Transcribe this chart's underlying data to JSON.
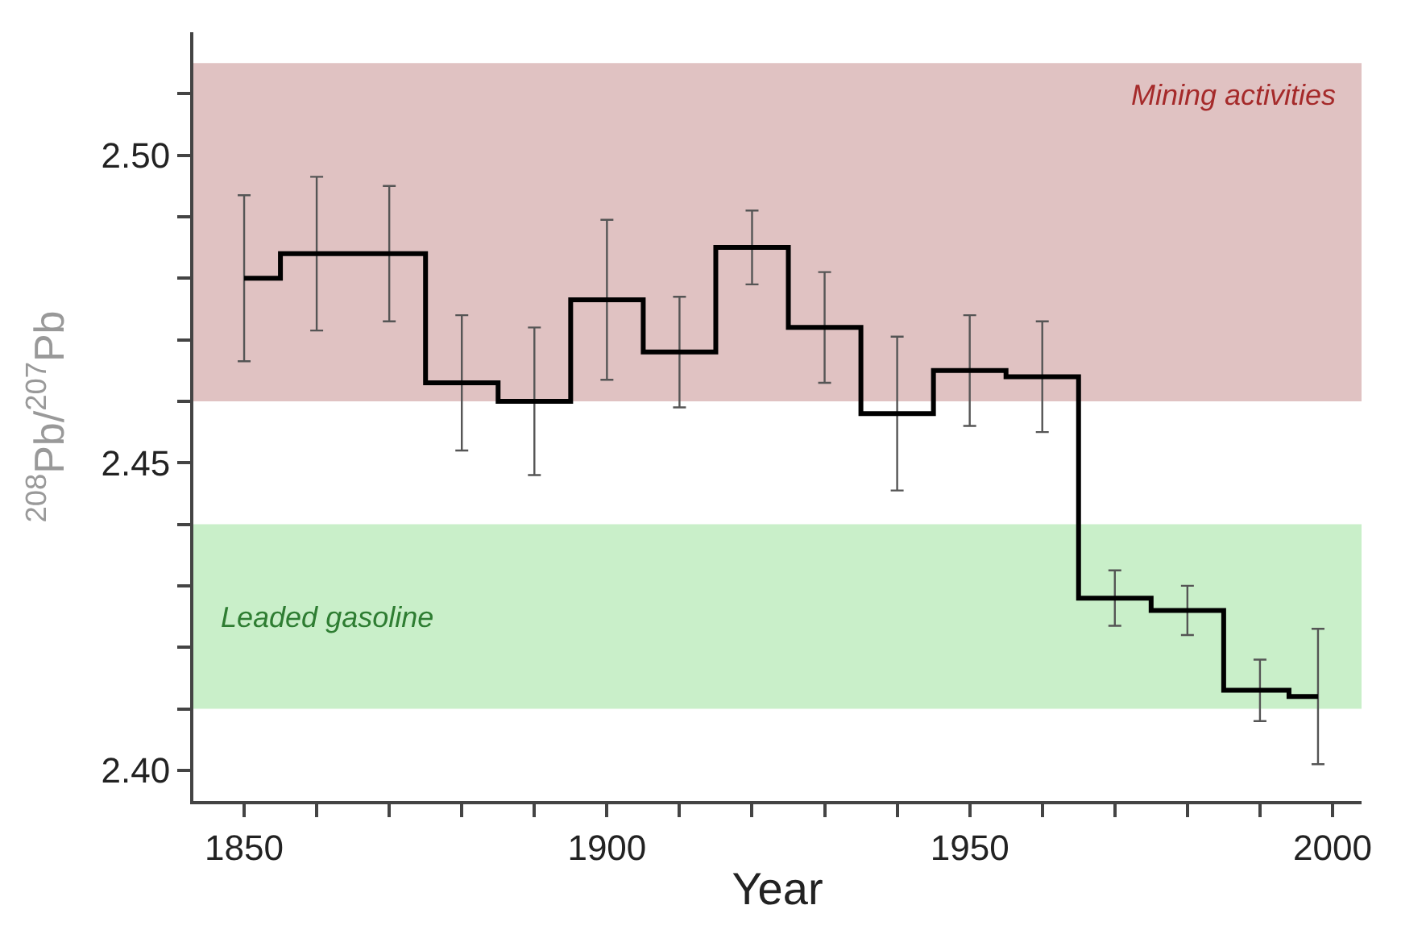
{
  "chart_data": {
    "type": "step",
    "xlabel": "Year",
    "ylabel": "$^{208}$Pb/$^{207}$Pb",
    "x": [
      1850,
      1860,
      1870,
      1880,
      1890,
      1900,
      1910,
      1920,
      1930,
      1940,
      1950,
      1960,
      1970,
      1980,
      1990,
      1998
    ],
    "series": [
      {
        "color": "#000000",
        "values": [
          2.48,
          2.484,
          2.484,
          2.463,
          2.46,
          2.4765,
          2.468,
          2.485,
          2.472,
          2.458,
          2.465,
          2.464,
          2.428,
          2.426,
          2.413,
          2.412
        ],
        "errors": [
          0.0135,
          0.0125,
          0.011,
          0.011,
          0.012,
          0.013,
          0.009,
          0.006,
          0.009,
          0.0125,
          0.009,
          0.009,
          0.0045,
          0.004,
          0.005,
          0.011
        ]
      }
    ],
    "xlim": [
      1843,
      2004
    ],
    "ylim": [
      2.395,
      2.52
    ],
    "xticks": [
      1850,
      {
        "value": 1860,
        "label": null
      },
      {
        "value": 1870,
        "label": null
      },
      {
        "value": 1880,
        "label": null
      },
      {
        "value": 1890,
        "label": null
      },
      1900,
      {
        "value": 1910,
        "label": null
      },
      {
        "value": 1920,
        "label": null
      },
      {
        "value": 1930,
        "label": null
      },
      {
        "value": 1940,
        "label": null
      },
      1950,
      {
        "value": 1960,
        "label": null
      },
      {
        "value": 1970,
        "label": null
      },
      {
        "value": 1980,
        "label": null
      },
      {
        "value": 1990,
        "label": null
      },
      2000
    ],
    "yticks": [
      {
        "value": 2.4,
        "label": "2.40"
      },
      {
        "value": 2.41,
        "label": null
      },
      {
        "value": 2.42,
        "label": null
      },
      {
        "value": 2.43,
        "label": null
      },
      {
        "value": 2.44,
        "label": null
      },
      {
        "value": 2.45,
        "label": "2.45"
      },
      {
        "value": 2.46,
        "label": null
      },
      {
        "value": 2.47,
        "label": null
      },
      {
        "value": 2.48,
        "label": null
      },
      {
        "value": 2.49,
        "label": null
      },
      {
        "value": 2.5,
        "label": "2.50"
      },
      {
        "value": 2.51,
        "label": null
      }
    ],
    "bands": [
      {
        "axis": "y",
        "from": 2.46,
        "to": 2.515,
        "label": "Mining activities",
        "color": "#e0c2c2"
      },
      {
        "axis": "y",
        "from": 2.41,
        "to": 2.44,
        "label": "Leaded gasoline",
        "color": "#c9efc9"
      }
    ],
    "grid": false,
    "legend": false,
    "marker": "none",
    "line_style": "solid"
  }
}
